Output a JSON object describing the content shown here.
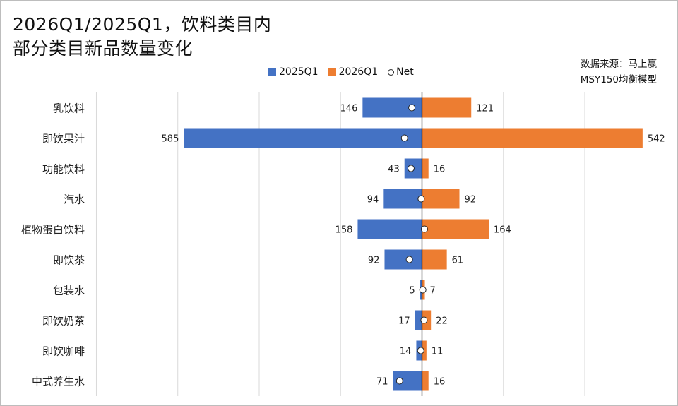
{
  "title_lines": [
    "2026Q1/2025Q1，饮料类目内",
    "部分类目新品数量变化"
  ],
  "source_lines": [
    "数据来源：马上赢",
    "MSY150均衡模型"
  ],
  "colors": {
    "s2025": "#4472C4",
    "s2026": "#ED7D31",
    "net_fill": "#ffffff",
    "net_stroke": "#222222"
  },
  "chart_data": {
    "type": "bar",
    "orientation": "horizontal-diverging",
    "categories": [
      "乳饮料",
      "即饮果汁",
      "功能饮料",
      "汽水",
      "植物蛋白饮料",
      "即饮茶",
      "包装水",
      "即饮奶茶",
      "即饮咖啡",
      "中式养生水"
    ],
    "series": [
      {
        "name": "2025Q1",
        "direction": "left",
        "values": [
          146,
          585,
          43,
          94,
          158,
          92,
          5,
          17,
          14,
          71
        ]
      },
      {
        "name": "2026Q1",
        "direction": "right",
        "values": [
          121,
          542,
          16,
          92,
          164,
          61,
          7,
          22,
          11,
          16
        ]
      }
    ],
    "net": {
      "name": "Net",
      "values": [
        -25,
        -43,
        -27,
        -2,
        6,
        -31,
        2,
        5,
        -3,
        -55
      ]
    },
    "xlim": [
      -585,
      542
    ],
    "legend_position": "top",
    "grid": true
  }
}
